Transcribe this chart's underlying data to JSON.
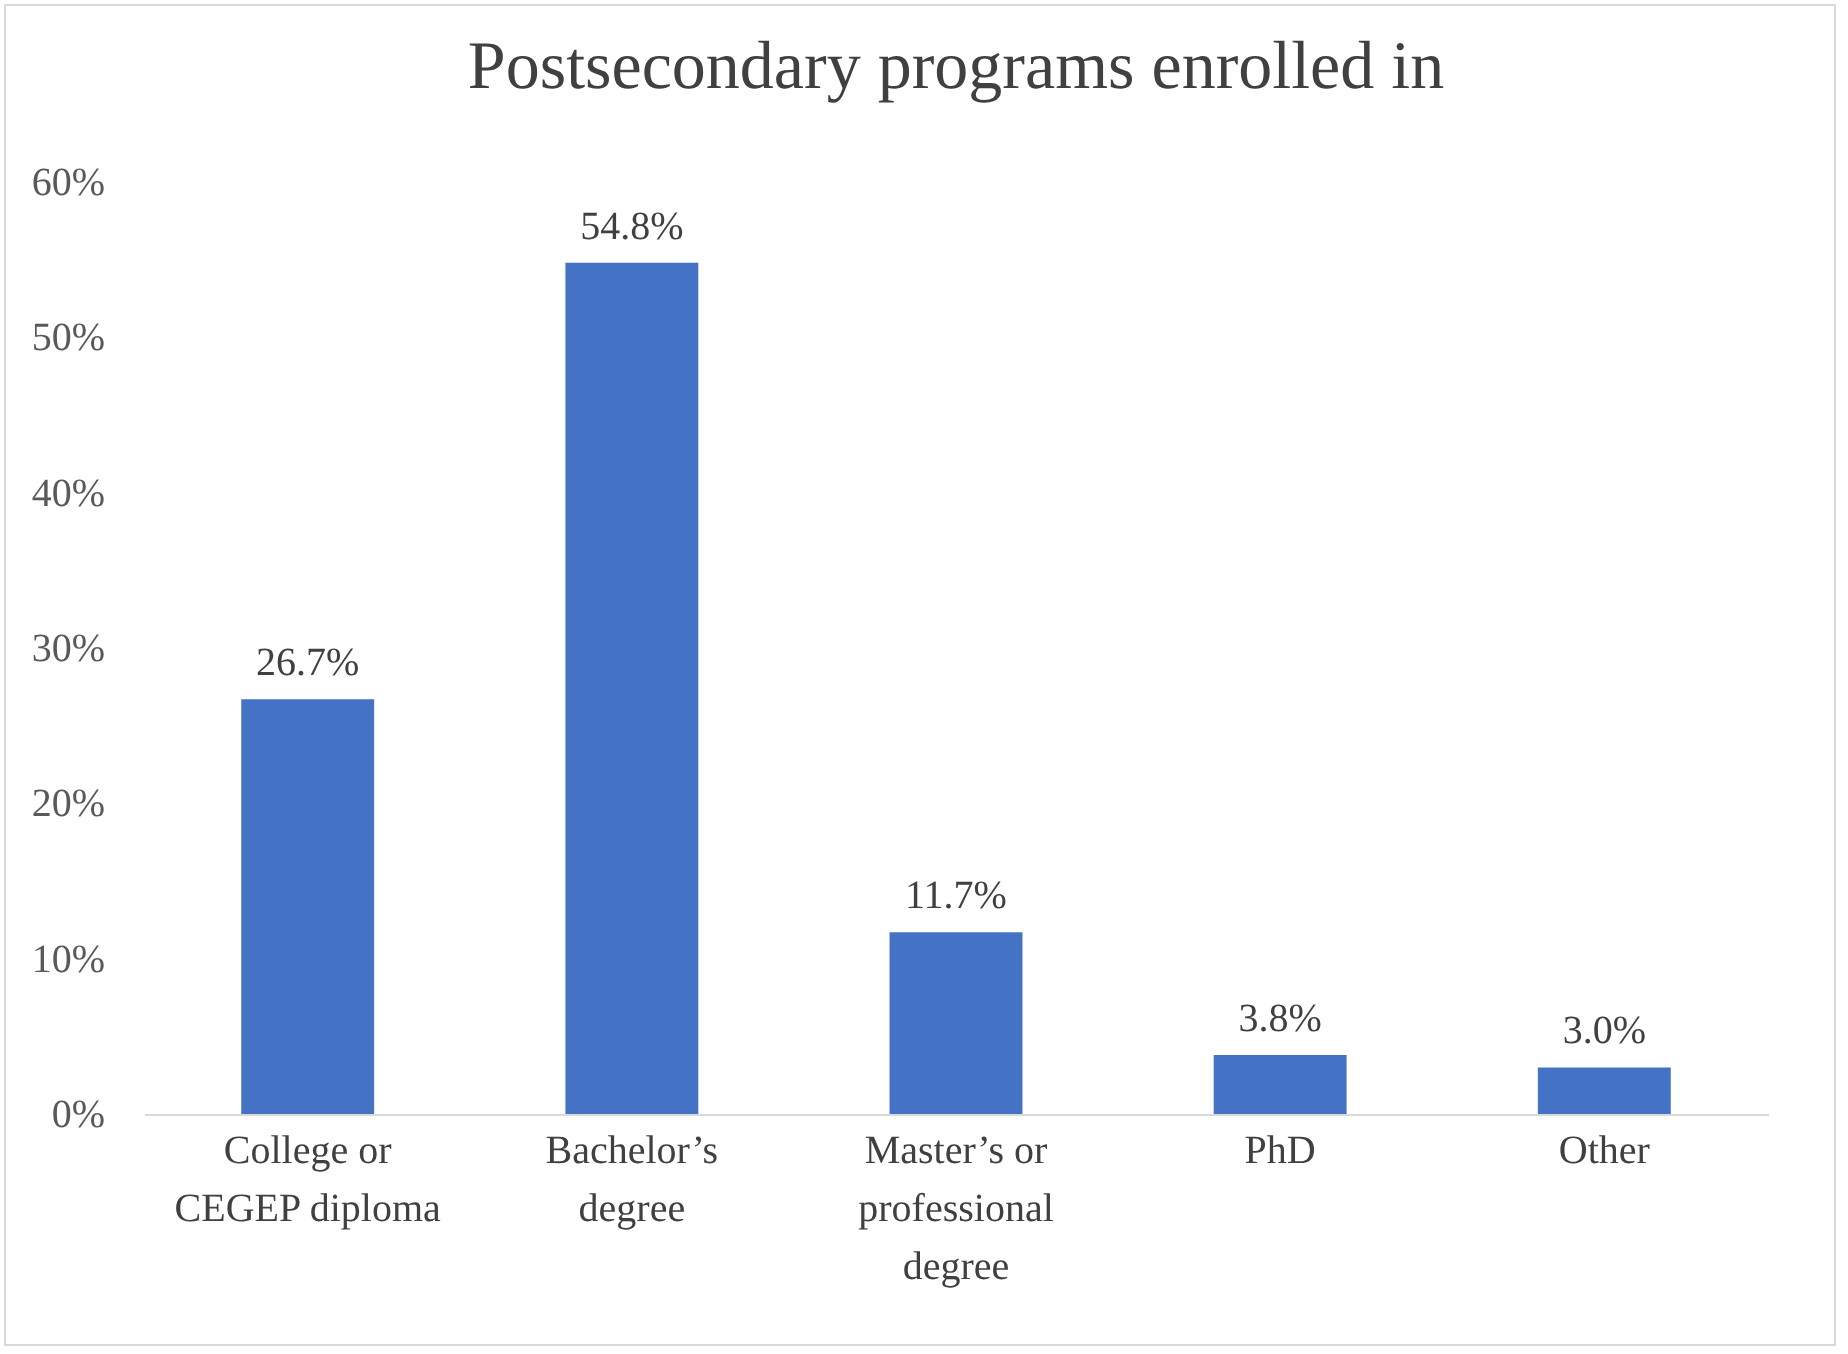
{
  "chart_data": {
    "type": "bar",
    "title": "Postsecondary programs enrolled in",
    "categories": [
      "College or CEGEP diploma",
      "Bachelor’s degree",
      "Master’s or professional degree",
      "PhD",
      "Other"
    ],
    "values": [
      26.7,
      54.8,
      11.7,
      3.8,
      3.0
    ],
    "value_labels": [
      "26.7%",
      "54.8%",
      "11.7%",
      "3.8%",
      "3.0%"
    ],
    "color": "#4472c4",
    "ylim": [
      0,
      60
    ],
    "yticks": [
      {
        "value": 0,
        "label": "0%"
      },
      {
        "value": 10,
        "label": "10%"
      },
      {
        "value": 20,
        "label": "20%"
      },
      {
        "value": 30,
        "label": "30%"
      },
      {
        "value": 40,
        "label": "40%"
      },
      {
        "value": 50,
        "label": "50%"
      },
      {
        "value": 60,
        "label": "60%"
      }
    ],
    "grid": false
  }
}
